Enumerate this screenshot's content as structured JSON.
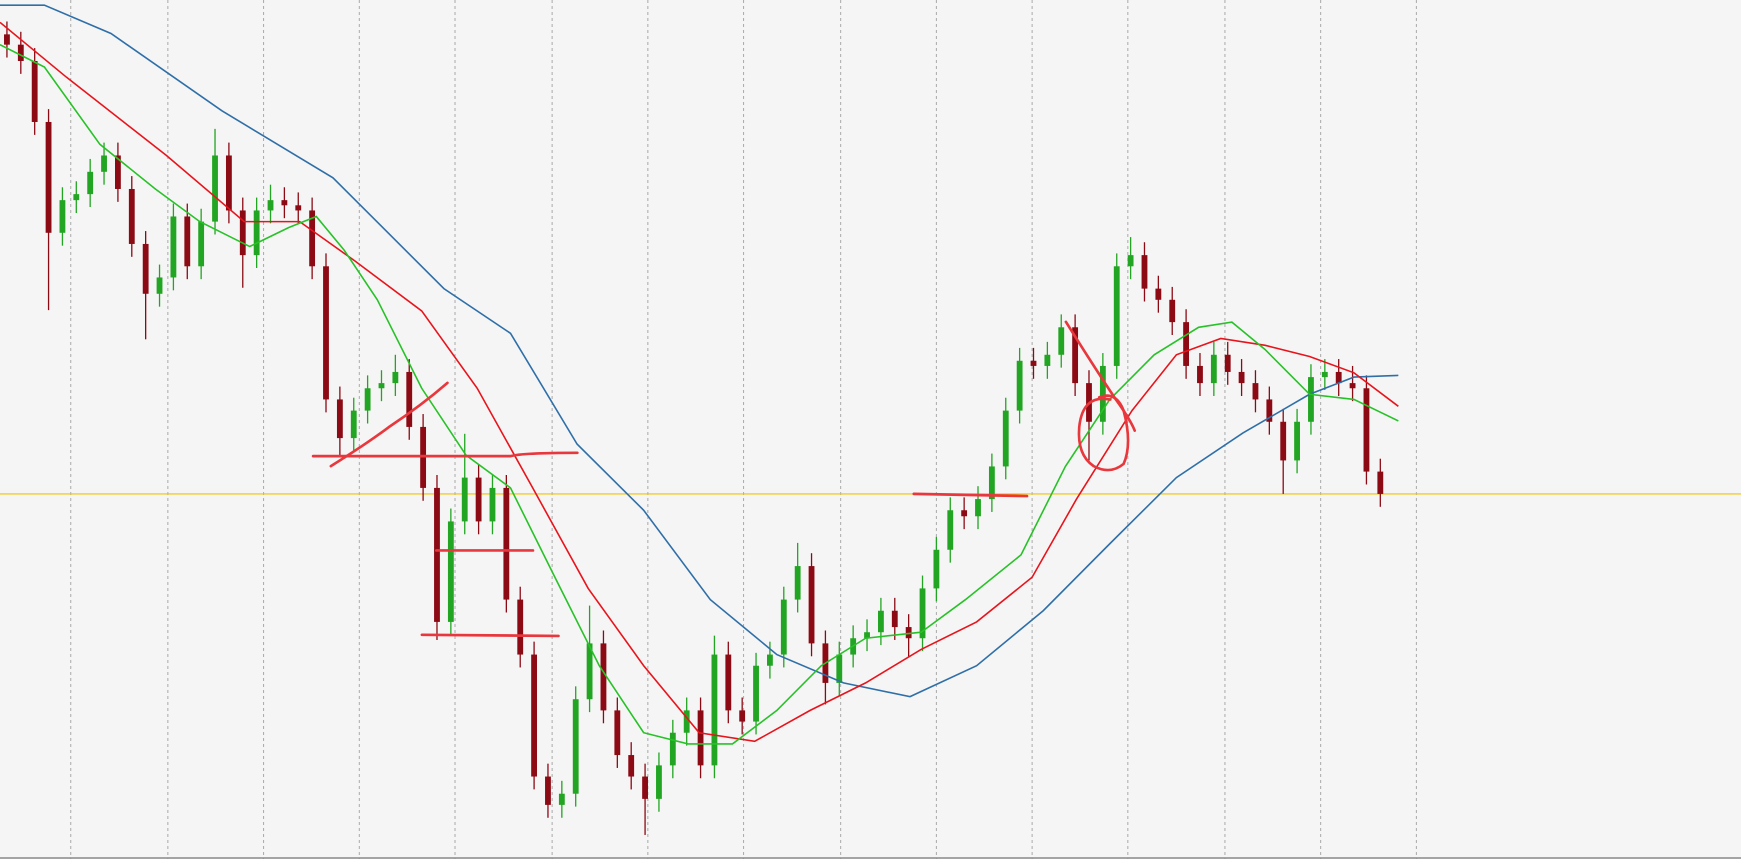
{
  "chart_data": {
    "type": "candlestick",
    "xlim": [
      -0.5,
      125
    ],
    "ylim": [
      0,
      100
    ],
    "xticks": [
      4.6,
      11.6,
      18.5,
      25.4,
      32.3,
      39.3,
      46.2,
      53.1,
      60.1,
      67.0,
      73.9,
      80.8,
      87.8,
      94.7,
      101.6
    ],
    "grid": true,
    "up_color": "#22a522",
    "down_color": "#8b0a14",
    "x": [
      0,
      1,
      2,
      3,
      4,
      5,
      6,
      7,
      8,
      9,
      10,
      11,
      12,
      13,
      14,
      15,
      16,
      17,
      18,
      19,
      20,
      21,
      22,
      23,
      24,
      25,
      26,
      27,
      28,
      29,
      30,
      31,
      32,
      33,
      34,
      35,
      36,
      37,
      38,
      39,
      40,
      41,
      42,
      43,
      44,
      45,
      46,
      47,
      48,
      49,
      50,
      51,
      52,
      53,
      54,
      55,
      56,
      57,
      58,
      59,
      60,
      61,
      62,
      63,
      64,
      65,
      66,
      67,
      68,
      69,
      70,
      71,
      72,
      73,
      74,
      75,
      76,
      77,
      78,
      79,
      80,
      81,
      82,
      83,
      84,
      85,
      86,
      87,
      88,
      89,
      90,
      91,
      92,
      93,
      94,
      95,
      96,
      97,
      98,
      99
    ],
    "open": [
      96.0,
      94.8,
      92.9,
      85.8,
      72.9,
      76.7,
      77.4,
      80.0,
      81.9,
      78.0,
      71.6,
      65.8,
      67.7,
      74.8,
      69.0,
      74.2,
      81.9,
      75.5,
      70.3,
      75.5,
      76.7,
      76.1,
      75.5,
      69.0,
      53.5,
      49.0,
      52.2,
      54.8,
      55.4,
      56.7,
      50.3,
      43.2,
      27.6,
      39.3,
      44.4,
      39.3,
      43.2,
      30.2,
      23.8,
      9.6,
      6.3,
      7.6,
      18.6,
      25.1,
      17.3,
      12.1,
      9.6,
      7.0,
      10.9,
      14.7,
      17.3,
      10.9,
      23.8,
      17.3,
      16.0,
      22.5,
      23.8,
      30.2,
      34.1,
      25.1,
      20.5,
      23.8,
      25.7,
      26.4,
      28.9,
      27.0,
      25.7,
      31.5,
      36.0,
      40.6,
      39.9,
      41.9,
      45.7,
      52.2,
      58.0,
      57.4,
      58.7,
      61.9,
      55.4,
      50.9,
      57.4,
      69.0,
      70.3,
      66.4,
      65.1,
      62.5,
      57.4,
      55.4,
      58.7,
      56.7,
      55.4,
      53.5,
      50.9,
      46.4,
      50.9,
      56.1,
      56.7,
      55.4,
      54.8,
      45.1
    ],
    "high": [
      97.5,
      96.3,
      94.4,
      87.3,
      78.2,
      78.9,
      81.5,
      83.4,
      83.4,
      79.5,
      73.1,
      69.2,
      76.3,
      76.3,
      75.7,
      85.0,
      83.4,
      77.0,
      77.0,
      78.5,
      78.2,
      77.6,
      77.0,
      70.5,
      55.0,
      53.7,
      56.3,
      56.9,
      58.7,
      58.2,
      51.8,
      44.7,
      40.8,
      49.5,
      45.9,
      44.7,
      44.7,
      31.7,
      25.3,
      11.1,
      9.1,
      20.1,
      29.5,
      26.6,
      18.8,
      13.6,
      11.1,
      12.4,
      16.2,
      18.8,
      18.8,
      26.0,
      25.3,
      18.8,
      24.0,
      25.3,
      31.7,
      36.8,
      35.6,
      26.6,
      25.3,
      27.2,
      27.9,
      30.4,
      30.4,
      28.5,
      33.0,
      37.5,
      42.1,
      42.1,
      43.4,
      47.2,
      53.7,
      59.5,
      59.5,
      60.2,
      63.4,
      63.4,
      56.9,
      58.9,
      70.5,
      72.4,
      71.8,
      67.9,
      66.6,
      64.0,
      58.9,
      60.2,
      60.2,
      58.2,
      56.9,
      55.0,
      52.4,
      52.4,
      57.6,
      58.2,
      58.2,
      57.4,
      56.3,
      46.6
    ],
    "low": [
      93.3,
      91.4,
      84.3,
      63.9,
      71.4,
      75.2,
      75.9,
      78.5,
      76.5,
      70.1,
      60.5,
      64.3,
      66.2,
      67.5,
      67.5,
      72.7,
      74.0,
      66.5,
      68.8,
      74.0,
      74.6,
      74.0,
      67.5,
      52.0,
      47.0,
      47.5,
      50.7,
      53.3,
      53.9,
      48.8,
      41.7,
      25.5,
      26.1,
      37.8,
      37.8,
      37.8,
      28.7,
      22.3,
      8.1,
      4.8,
      4.8,
      6.1,
      17.1,
      15.8,
      10.6,
      8.1,
      2.8,
      5.5,
      9.4,
      13.2,
      9.4,
      9.4,
      15.8,
      14.5,
      14.5,
      21.0,
      22.3,
      28.7,
      23.6,
      18.0,
      19.0,
      22.3,
      24.2,
      24.9,
      25.5,
      23.5,
      24.2,
      30.0,
      34.5,
      38.4,
      38.4,
      40.4,
      44.2,
      50.7,
      55.9,
      55.9,
      57.2,
      53.9,
      46.4,
      49.4,
      55.9,
      67.5,
      64.9,
      63.6,
      61.0,
      55.9,
      53.9,
      53.9,
      55.2,
      53.9,
      52.0,
      49.4,
      42.5,
      44.9,
      49.4,
      54.6,
      53.9,
      53.3,
      43.6,
      41.0
    ],
    "close": [
      94.8,
      92.9,
      85.8,
      72.9,
      76.7,
      77.4,
      80.0,
      81.9,
      78.0,
      71.6,
      65.8,
      67.7,
      74.8,
      69.0,
      74.2,
      81.9,
      75.5,
      70.3,
      75.5,
      76.7,
      76.1,
      75.5,
      69.0,
      53.5,
      49.0,
      52.2,
      54.8,
      55.4,
      56.7,
      50.3,
      43.2,
      27.6,
      39.3,
      44.4,
      39.3,
      43.2,
      30.2,
      23.8,
      9.6,
      6.3,
      7.6,
      18.6,
      25.1,
      17.3,
      12.1,
      9.6,
      7.0,
      10.9,
      14.7,
      17.3,
      10.9,
      23.8,
      17.3,
      16.0,
      22.5,
      23.8,
      30.2,
      34.1,
      25.1,
      20.5,
      23.8,
      25.7,
      26.4,
      28.9,
      27.0,
      25.7,
      31.5,
      36.0,
      40.6,
      39.9,
      41.9,
      45.7,
      52.2,
      58.0,
      57.4,
      58.7,
      61.9,
      55.4,
      50.9,
      57.4,
      69.0,
      70.3,
      66.4,
      65.1,
      62.5,
      57.4,
      55.4,
      58.7,
      56.7,
      55.4,
      53.5,
      50.9,
      46.4,
      50.9,
      56.1,
      56.7,
      55.4,
      54.8,
      45.1,
      42.5
    ],
    "series": [
      {
        "color": "#2f6fa8",
        "x": [
          -0.5,
          2.7,
          7.5,
          15.5,
          23.5,
          31.5,
          36.3,
          41.1,
          45.9,
          50.7,
          55.5,
          60.3,
          65.1,
          69.9,
          74.7,
          79.5,
          84.3,
          89.1,
          93.9,
          97.1,
          100.3
        ],
        "values": [
          99.4,
          99.4,
          96.1,
          87.1,
          79.3,
          66.4,
          61.2,
          48.3,
          40.6,
          30.2,
          23.8,
          20.5,
          18.9,
          22.5,
          28.9,
          36.7,
          44.4,
          49.6,
          54.1,
          56.1,
          56.3
        ]
      },
      {
        "color": "#e8141c",
        "x": [
          -0.5,
          4.3,
          11.5,
          17.1,
          21.1,
          25.1,
          29.9,
          33.9,
          37.9,
          41.9,
          45.9,
          49.9,
          53.9,
          57.9,
          61.9,
          65.9,
          69.9,
          73.9,
          77.1,
          81.1,
          84.3,
          87.5,
          90.7,
          93.9,
          97.1,
          100.3
        ],
        "values": [
          97.4,
          91.0,
          81.9,
          74.2,
          74.2,
          69.6,
          63.8,
          54.8,
          43.2,
          31.5,
          22.5,
          14.7,
          13.7,
          17.3,
          20.5,
          24.4,
          27.6,
          32.8,
          41.9,
          52.2,
          58.7,
          60.6,
          59.8,
          58.5,
          56.6,
          52.7
        ]
      },
      {
        "color": "#28c228",
        "x": [
          -0.5,
          2.7,
          6.7,
          10.7,
          13.9,
          17.5,
          20.3,
          22.3,
          24.3,
          26.7,
          29.9,
          33.1,
          36.3,
          39.5,
          42.7,
          45.9,
          49.1,
          52.3,
          55.5,
          58.7,
          61.9,
          65.9,
          69.1,
          73.1,
          76.3,
          79.5,
          82.7,
          85.9,
          88.3,
          90.7,
          93.9,
          97.1,
          100.3
        ],
        "values": [
          94.8,
          92.2,
          83.2,
          78.0,
          74.2,
          71.3,
          73.5,
          74.8,
          70.9,
          65.1,
          54.8,
          47.0,
          43.2,
          32.8,
          22.5,
          14.7,
          13.4,
          13.4,
          17.3,
          22.5,
          25.7,
          26.4,
          30.2,
          35.4,
          45.7,
          53.5,
          58.7,
          61.9,
          62.5,
          59.3,
          54.1,
          53.5,
          51.0
        ]
      }
    ],
    "hline": {
      "value": 42.5,
      "color": "#f2c200"
    }
  }
}
